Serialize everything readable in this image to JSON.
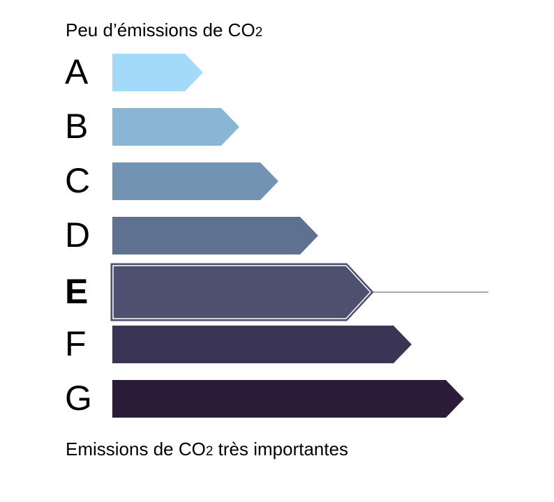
{
  "top_label": {
    "parts": [
      "Peu d’émissions de CO",
      "2"
    ]
  },
  "bottom_label": {
    "parts": [
      "Emissions de CO",
      "2",
      " très importantes"
    ]
  },
  "classes": [
    {
      "letter": "A",
      "color": "#a3dafa"
    },
    {
      "letter": "B",
      "color": "#8ab6d6"
    },
    {
      "letter": "C",
      "color": "#7393b3"
    },
    {
      "letter": "D",
      "color": "#5f7190"
    },
    {
      "letter": "E",
      "color": "#4e5070",
      "selected": true
    },
    {
      "letter": "F",
      "color": "#3b3555"
    },
    {
      "letter": "G",
      "color": "#2b1d38"
    }
  ]
}
